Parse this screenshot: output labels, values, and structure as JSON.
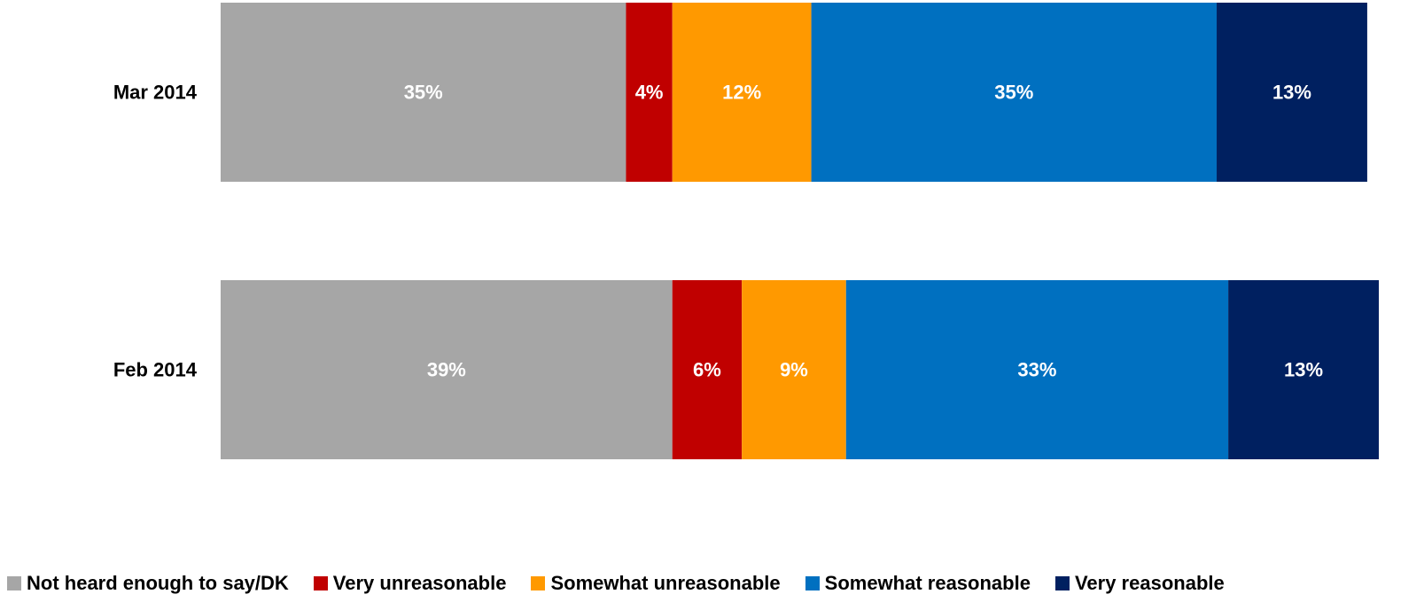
{
  "chart_data": {
    "type": "bar",
    "orientation": "horizontal",
    "stacked": true,
    "categories": [
      "Mar 2014",
      "Feb 2014"
    ],
    "series": [
      {
        "name": "Not heard enough to say/DK",
        "color": "#a6a6a6",
        "values": [
          35,
          39
        ],
        "labels": [
          "35%",
          "39%"
        ]
      },
      {
        "name": "Very unreasonable",
        "color": "#c00000",
        "values": [
          4,
          6
        ],
        "labels": [
          "4%",
          "6%"
        ]
      },
      {
        "name": "Somewhat unreasonable",
        "color": "#ff9900",
        "values": [
          12,
          9
        ],
        "labels": [
          "12%",
          "9%"
        ]
      },
      {
        "name": "Somewhat reasonable",
        "color": "#0070c0",
        "values": [
          35,
          33
        ],
        "labels": [
          "35%",
          "33%"
        ]
      },
      {
        "name": "Very reasonable",
        "color": "#002060",
        "values": [
          13,
          13
        ],
        "labels": [
          "13%",
          "13%"
        ]
      }
    ],
    "xlim": [
      0,
      100
    ],
    "grid": false,
    "legend_position": "bottom"
  }
}
